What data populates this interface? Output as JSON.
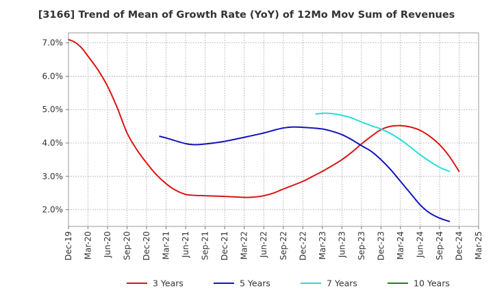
{
  "chart_data": {
    "type": "line",
    "title": "[3166]  Trend of Mean of Growth Rate (YoY) of 12Mo Mov Sum of Revenues",
    "xlabel": "",
    "ylabel": "",
    "y_ticks": [
      "2.0%",
      "3.0%",
      "4.0%",
      "5.0%",
      "6.0%",
      "7.0%"
    ],
    "ylim": [
      1.5,
      7.3
    ],
    "x_ticks": [
      "Dec-19",
      "Mar-20",
      "Jun-20",
      "Sep-20",
      "Dec-20",
      "Mar-21",
      "Jun-21",
      "Sep-21",
      "Dec-21",
      "Mar-22",
      "Jun-22",
      "Sep-22",
      "Dec-22",
      "Mar-23",
      "Jun-23",
      "Sep-23",
      "Dec-23",
      "Mar-24",
      "Jun-24",
      "Sep-24",
      "Dec-24",
      "Mar-25"
    ],
    "grid": true,
    "legend_position": "bottom",
    "series": [
      {
        "name": "3 Years",
        "color": "#dd1111",
        "points": [
          [
            0,
            7.1
          ],
          [
            0.33,
            7.02
          ],
          [
            0.67,
            6.85
          ],
          [
            1,
            6.6
          ],
          [
            1.5,
            6.2
          ],
          [
            2,
            5.7
          ],
          [
            2.5,
            5.05
          ],
          [
            3,
            4.3
          ],
          [
            3.5,
            3.8
          ],
          [
            4,
            3.4
          ],
          [
            4.5,
            3.05
          ],
          [
            5,
            2.78
          ],
          [
            5.5,
            2.58
          ],
          [
            6,
            2.46
          ],
          [
            6.5,
            2.43
          ],
          [
            7,
            2.42
          ],
          [
            8,
            2.4
          ],
          [
            9,
            2.37
          ],
          [
            9.5,
            2.38
          ],
          [
            10,
            2.42
          ],
          [
            10.5,
            2.5
          ],
          [
            11,
            2.62
          ],
          [
            12,
            2.85
          ],
          [
            12.5,
            3.0
          ],
          [
            13,
            3.15
          ],
          [
            13.5,
            3.32
          ],
          [
            14,
            3.5
          ],
          [
            14.5,
            3.72
          ],
          [
            15,
            3.97
          ],
          [
            15.5,
            4.2
          ],
          [
            16,
            4.4
          ],
          [
            16.5,
            4.5
          ],
          [
            17,
            4.52
          ],
          [
            17.5,
            4.48
          ],
          [
            18,
            4.38
          ],
          [
            18.5,
            4.2
          ],
          [
            19,
            3.95
          ],
          [
            19.5,
            3.6
          ],
          [
            20,
            3.15
          ]
        ]
      },
      {
        "name": "5 Years",
        "color": "#1111bb",
        "points": [
          [
            4.67,
            4.2
          ],
          [
            5,
            4.15
          ],
          [
            6,
            3.98
          ],
          [
            6.5,
            3.95
          ],
          [
            7,
            3.97
          ],
          [
            8,
            4.05
          ],
          [
            9,
            4.17
          ],
          [
            10,
            4.3
          ],
          [
            10.5,
            4.38
          ],
          [
            11,
            4.45
          ],
          [
            11.5,
            4.48
          ],
          [
            12,
            4.47
          ],
          [
            12.5,
            4.45
          ],
          [
            13,
            4.42
          ],
          [
            13.5,
            4.35
          ],
          [
            14,
            4.25
          ],
          [
            14.5,
            4.1
          ],
          [
            15,
            3.92
          ],
          [
            15.5,
            3.75
          ],
          [
            16,
            3.5
          ],
          [
            16.5,
            3.2
          ],
          [
            17,
            2.85
          ],
          [
            17.5,
            2.5
          ],
          [
            18,
            2.15
          ],
          [
            18.5,
            1.9
          ],
          [
            19,
            1.75
          ],
          [
            19.5,
            1.65
          ]
        ]
      },
      {
        "name": "7 Years",
        "color": "#22dddd",
        "points": [
          [
            12.67,
            4.87
          ],
          [
            13,
            4.89
          ],
          [
            13.5,
            4.88
          ],
          [
            14,
            4.83
          ],
          [
            14.5,
            4.75
          ],
          [
            15,
            4.63
          ],
          [
            15.5,
            4.52
          ],
          [
            16,
            4.42
          ],
          [
            16.5,
            4.28
          ],
          [
            17,
            4.1
          ],
          [
            17.5,
            3.88
          ],
          [
            18,
            3.65
          ],
          [
            18.5,
            3.45
          ],
          [
            19,
            3.27
          ],
          [
            19.5,
            3.15
          ]
        ]
      },
      {
        "name": "10 Years",
        "color": "#118811",
        "points": []
      }
    ]
  }
}
